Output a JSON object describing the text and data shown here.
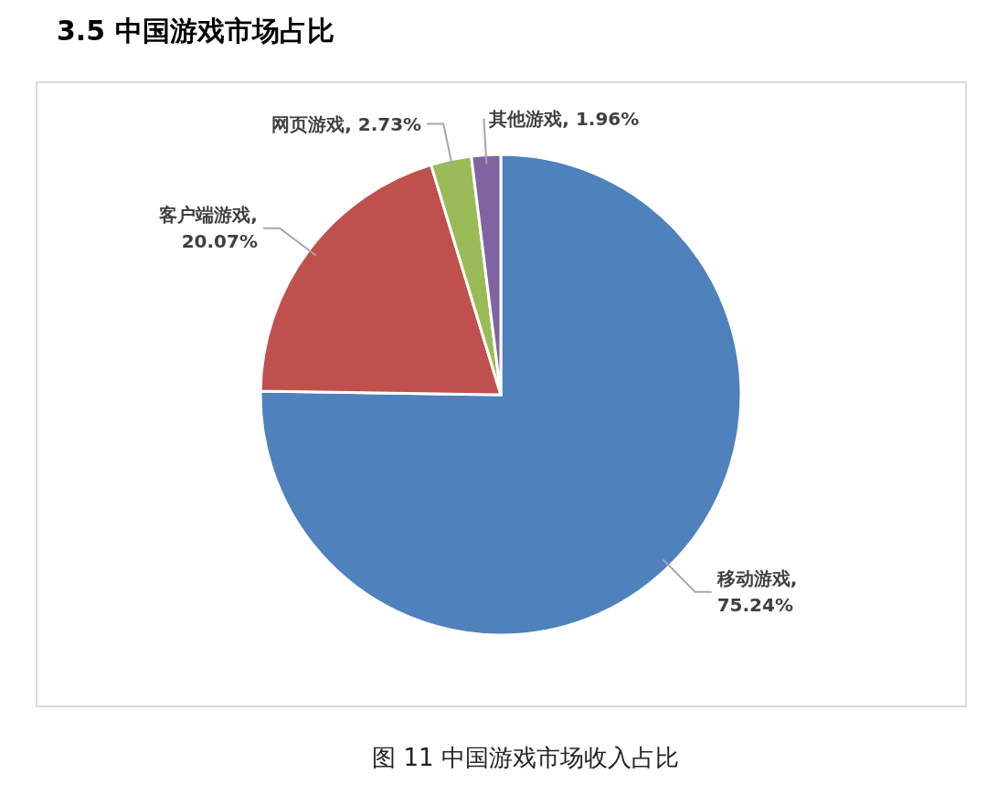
{
  "chart_data": {
    "type": "pie",
    "title": "3.5  中国游戏市场占比",
    "categories": [
      "移动游戏",
      "客户端游戏",
      "网页游戏",
      "其他游戏"
    ],
    "values": [
      75.24,
      20.07,
      2.73,
      1.96
    ],
    "colors": [
      "#4f81bd",
      "#c0504d",
      "#9bbb59",
      "#8064a2"
    ],
    "value_labels": [
      ",\n75.24%",
      ",\n20.07%",
      ", 2.73%",
      ", 1.96%"
    ],
    "annotations": [
      "图 11  中国游戏市场收入占比"
    ]
  }
}
